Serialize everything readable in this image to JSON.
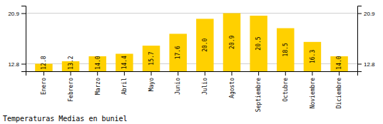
{
  "chart_data": {
    "type": "bar",
    "title": "Temperaturas Medias en buniel",
    "categories": [
      "Enero",
      "Febrero",
      "Marzo",
      "Abril",
      "Mayo",
      "Junio",
      "Julio",
      "Agosto",
      "Septiembre",
      "Octubre",
      "Noviembre",
      "Diciembre"
    ],
    "values": [
      12.8,
      13.2,
      14.0,
      14.4,
      15.7,
      17.6,
      20.0,
      20.9,
      20.5,
      18.5,
      16.3,
      14.0
    ],
    "value_labels": [
      "12.8",
      "13.2",
      "14.0",
      "14.4",
      "15.7",
      "17.6",
      "20.0",
      "20.9",
      "20.5",
      "18.5",
      "16.3",
      "14.0"
    ],
    "color": "#FFD000",
    "ylim": [
      11.6,
      22.1
    ],
    "yticks": [
      12.8,
      20.9
    ],
    "y2lim": [
      11.6,
      22.1
    ],
    "y2ticks": [
      12.8,
      20.9
    ],
    "grid": true,
    "data_labels": true
  }
}
